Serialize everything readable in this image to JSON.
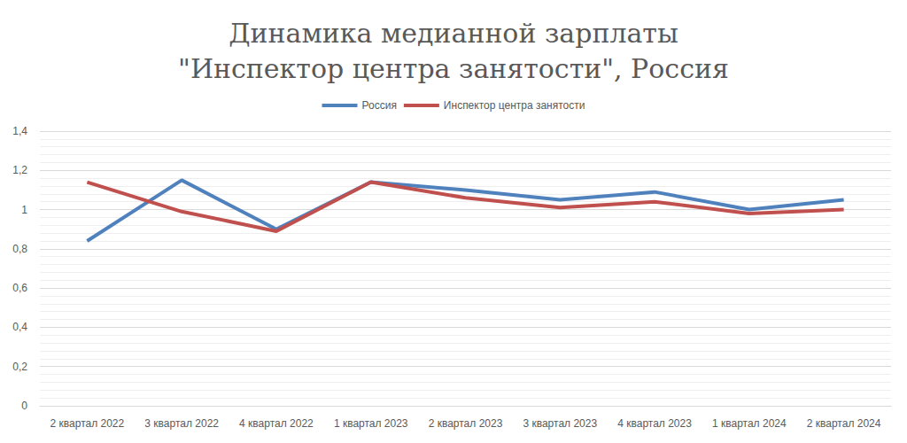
{
  "chart_data": {
    "type": "line",
    "title": "Динамика медианной зарплаты\n\"Инспектор центра занятости\", Россия",
    "categories": [
      "2 квартал 2022",
      "3 квартал 2022",
      "4 квартал 2022",
      "1 квартал 2023",
      "2 квартал 2023",
      "3 квартал 2023",
      "4 квартал 2023",
      "1 квартал 2024",
      "2 квартал 2024"
    ],
    "series": [
      {
        "name": "Россия",
        "color": "#4f81bd",
        "values": [
          0.84,
          1.15,
          0.9,
          1.14,
          1.1,
          1.05,
          1.09,
          1.0,
          1.05
        ]
      },
      {
        "name": "Инспектор центра занятости",
        "color": "#c0504d",
        "values": [
          1.14,
          0.99,
          0.89,
          1.14,
          1.06,
          1.01,
          1.04,
          0.98,
          1.0
        ]
      }
    ],
    "ylim": [
      0,
      1.4
    ],
    "yticks": [
      0,
      {
        "value": 0.2,
        "label": "0,2"
      },
      {
        "value": 0.4,
        "label": "0,4"
      },
      {
        "value": 0.6,
        "label": "0,6"
      },
      {
        "value": 0.8,
        "label": "0,8"
      },
      1,
      {
        "value": 1.2,
        "label": "1,2"
      },
      {
        "value": 1.4,
        "label": "1,4"
      }
    ],
    "grid": true,
    "legend": "top"
  }
}
